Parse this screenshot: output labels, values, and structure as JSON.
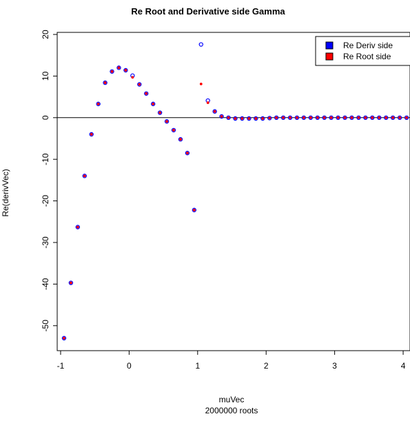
{
  "chart_data": {
    "type": "scatter",
    "title": "Re Root and Derivative side Gamma",
    "xlabel": "muVec",
    "xlabel_sub": "2000000 roots",
    "ylabel": "Re(derivVec)",
    "xlim": [
      -1.05,
      4.1
    ],
    "ylim": [
      -56,
      20.5
    ],
    "xticks": [
      -1,
      0,
      1,
      2,
      3,
      4
    ],
    "yticks": [
      -50,
      -40,
      -30,
      -20,
      -10,
      0,
      10,
      20
    ],
    "hline": 0,
    "grid": false,
    "legend_position": "top-right",
    "colors": {
      "deriv": "#0000ff",
      "root": "#ff0000"
    },
    "series": [
      {
        "name": "Re Deriv side",
        "marker": "open-circle",
        "color": "#0000ff",
        "x": [
          -0.95,
          -0.85,
          -0.75,
          -0.65,
          -0.55,
          -0.45,
          -0.35,
          -0.25,
          -0.15,
          -0.05,
          0.05,
          0.15,
          0.25,
          0.35,
          0.45,
          0.55,
          0.65,
          0.75,
          0.85,
          0.95,
          1.05,
          1.15,
          1.25,
          1.35,
          1.45,
          1.55,
          1.65,
          1.75,
          1.85,
          1.95,
          2.05,
          2.15,
          2.25,
          2.35,
          2.45,
          2.55,
          2.65,
          2.75,
          2.85,
          2.95,
          3.05,
          3.15,
          3.25,
          3.35,
          3.45,
          3.55,
          3.65,
          3.75,
          3.85,
          3.95,
          4.05
        ],
        "y": [
          -53,
          -39.7,
          -26.3,
          -14,
          -4,
          3.3,
          8.4,
          11.1,
          12,
          11.4,
          10.1,
          8,
          5.8,
          3.3,
          1.2,
          -0.9,
          -3,
          -5.2,
          -8.5,
          -22.2,
          17.6,
          4.1,
          1.5,
          0.3,
          0,
          -0.2,
          -0.2,
          -0.2,
          -0.2,
          -0.2,
          -0.1,
          0,
          0,
          0,
          0,
          0,
          0,
          0,
          0,
          0,
          0,
          0,
          0,
          0,
          0,
          0,
          0,
          0,
          0,
          0,
          0
        ]
      },
      {
        "name": "Re Root side",
        "marker": "filled-dot",
        "color": "#ff0000",
        "x": [
          -0.95,
          -0.85,
          -0.75,
          -0.65,
          -0.55,
          -0.45,
          -0.35,
          -0.25,
          -0.15,
          -0.05,
          0.05,
          0.15,
          0.25,
          0.35,
          0.45,
          0.55,
          0.65,
          0.75,
          0.85,
          0.95,
          1.05,
          1.15,
          1.25,
          1.35,
          1.45,
          1.55,
          1.65,
          1.75,
          1.85,
          1.95,
          2.05,
          2.15,
          2.25,
          2.35,
          2.45,
          2.55,
          2.65,
          2.75,
          2.85,
          2.95,
          3.05,
          3.15,
          3.25,
          3.35,
          3.45,
          3.55,
          3.65,
          3.75,
          3.85,
          3.95,
          4.05
        ],
        "y": [
          -53,
          -39.7,
          -26.3,
          -14,
          -4,
          3.3,
          8.4,
          11.1,
          12,
          11.4,
          9.7,
          8,
          5.8,
          3.3,
          1.2,
          -0.9,
          -3,
          -5.2,
          -8.5,
          -22.2,
          8.1,
          3.6,
          1.5,
          0.3,
          0,
          -0.2,
          -0.2,
          -0.2,
          -0.2,
          -0.2,
          -0.1,
          0,
          0,
          0,
          0,
          0,
          0,
          0,
          0,
          0,
          0,
          0,
          0,
          0,
          0,
          0,
          0,
          0,
          0,
          0,
          0
        ]
      }
    ]
  }
}
